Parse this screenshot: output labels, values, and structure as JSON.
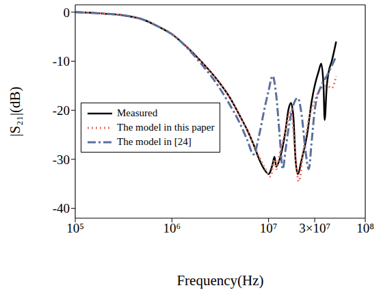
{
  "chart_data": {
    "type": "line",
    "x_label": "Frequency(Hz)",
    "y_label": "|S₂₁|(dB)",
    "log": "x",
    "grid": true,
    "legend": "left",
    "xlim": [
      100000,
      100000000
    ],
    "xticks": [
      {
        "value": 100000,
        "label": "10⁵"
      },
      {
        "value": 1000000,
        "label": "10⁶"
      },
      {
        "value": 10000000,
        "label": "10⁷"
      },
      {
        "value": 30000000,
        "label": "3×10⁷"
      },
      {
        "value": 100000000,
        "label": "10⁸"
      }
    ],
    "ylim": [
      -42,
      1.5
    ],
    "yticks": [
      -40,
      -30,
      -20,
      -10,
      0
    ],
    "series": [
      {
        "name": "Measured",
        "color": "#000000",
        "line_style": "solid",
        "x": [
          100000,
          200000,
          300000,
          500000,
          700000,
          1000000,
          1500000,
          2000000,
          3000000,
          4000000,
          5000000,
          6000000,
          7000000,
          8000000,
          9000000,
          10000000,
          11000000,
          11500000,
          12000000,
          13000000,
          15000000,
          16000000,
          17000000,
          18000000,
          19000000,
          20000000,
          22000000,
          25000000,
          28000000,
          30000000,
          33000000,
          35000000,
          37000000,
          38000000,
          40000000,
          42000000,
          45000000,
          50000000
        ],
        "values": [
          0,
          -0.3,
          -0.6,
          -1.5,
          -2.8,
          -4.5,
          -7.5,
          -10,
          -14,
          -17.5,
          -21,
          -24,
          -27,
          -30,
          -32,
          -33,
          -31,
          -29.5,
          -31.5,
          -30,
          -24,
          -20,
          -18.5,
          -21,
          -30,
          -33,
          -30,
          -25,
          -18,
          -15,
          -12,
          -10.5,
          -15,
          -22,
          -15,
          -12,
          -10,
          -6
        ]
      },
      {
        "name": "The model in this paper",
        "color": "#e8735f",
        "line_style": "dotted",
        "x": [
          100000,
          200000,
          300000,
          500000,
          700000,
          1000000,
          1500000,
          2000000,
          3000000,
          4000000,
          5000000,
          6000000,
          7000000,
          8000000,
          9000000,
          10500000,
          11500000,
          12000000,
          13000000,
          15000000,
          17000000,
          18000000,
          19500000,
          20500000,
          23000000,
          26000000,
          30000000,
          35000000,
          40000000,
          45000000,
          50000000
        ],
        "values": [
          0,
          -0.3,
          -0.6,
          -1.5,
          -2.8,
          -4.5,
          -7.5,
          -10,
          -14,
          -17.5,
          -21,
          -24,
          -27,
          -29.5,
          -31.5,
          -33.5,
          -30,
          -32,
          -29,
          -24,
          -20,
          -24,
          -32,
          -34.5,
          -28,
          -22,
          -18,
          -15.5,
          -15,
          -15.5,
          -13
        ]
      },
      {
        "name": "The model in [24]",
        "color": "#5b6f9e",
        "line_style": "dashdot",
        "x": [
          100000,
          200000,
          300000,
          500000,
          700000,
          1000000,
          2000000,
          3000000,
          4000000,
          5000000,
          6000000,
          7000000,
          8000000,
          9000000,
          10000000,
          11000000,
          12000000,
          13000000,
          14000000,
          15000000,
          16000000,
          18000000,
          20000000,
          22000000,
          24000000,
          26000000,
          28000000,
          30000000,
          35000000,
          40000000,
          50000000
        ],
        "values": [
          0,
          -0.3,
          -0.6,
          -1.5,
          -2.8,
          -4.5,
          -10.5,
          -15,
          -19,
          -22.5,
          -26,
          -29,
          -25,
          -20,
          -16,
          -13,
          -17,
          -25,
          -32,
          -28,
          -24,
          -19,
          -17.5,
          -21,
          -28,
          -32,
          -26,
          -20,
          -15,
          -13,
          -9
        ]
      }
    ]
  }
}
